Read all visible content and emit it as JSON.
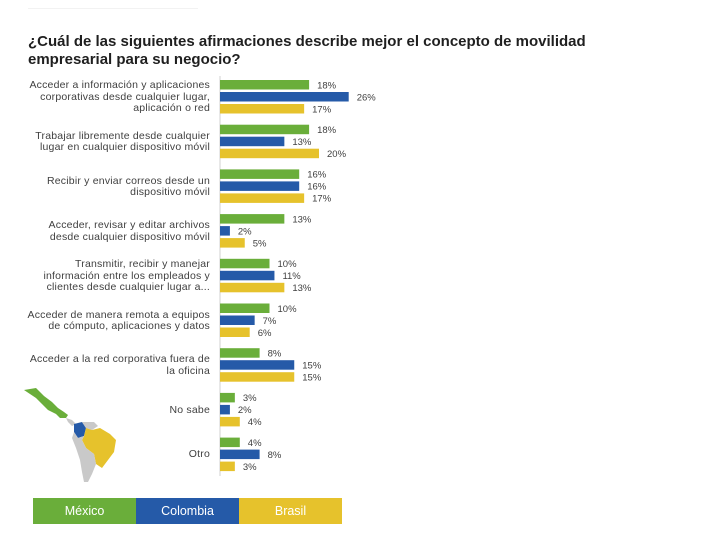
{
  "chart_data": {
    "type": "bar",
    "orientation": "horizontal",
    "title": "¿Cuál de las siguientes afirmaciones describe mejor el concepto de movilidad empresarial para su negocio?",
    "categories": [
      "Acceder a información y aplicaciones corporativas desde cualquier lugar, aplicación o red",
      "Trabajar libremente desde cualquier lugar en cualquier dispositivo móvil",
      "Recibir y enviar correos desde un dispositivo móvil",
      "Acceder, revisar y editar archivos desde cualquier dispositivo móvil",
      "Transmitir, recibir y manejar información entre los empleados y clientes desde cualquier lugar a...",
      "Acceder de manera remota a equipos de cómputo, aplicaciones y datos",
      "Acceder a la red corporativa fuera de la oficina",
      "No sabe",
      "Otro"
    ],
    "series": [
      {
        "name": "México",
        "color": "#6aae3a",
        "values": [
          18,
          18,
          16,
          13,
          10,
          10,
          8,
          3,
          4
        ]
      },
      {
        "name": "Colombia",
        "color": "#255aa8",
        "values": [
          26,
          13,
          16,
          2,
          11,
          7,
          15,
          2,
          8
        ]
      },
      {
        "name": "Brasil",
        "color": "#e6c22c",
        "values": [
          17,
          20,
          17,
          5,
          13,
          6,
          15,
          4,
          3
        ]
      }
    ],
    "value_suffix": "%",
    "xlim": [
      0,
      35
    ],
    "grid": false
  },
  "legend": {
    "items": [
      {
        "label": "México",
        "color": "#6aae3a"
      },
      {
        "label": "Colombia",
        "color": "#255aa8"
      },
      {
        "label": "Brasil",
        "color": "#e6c22c"
      }
    ]
  },
  "map": {
    "icon": "latin-america-map-icon"
  }
}
